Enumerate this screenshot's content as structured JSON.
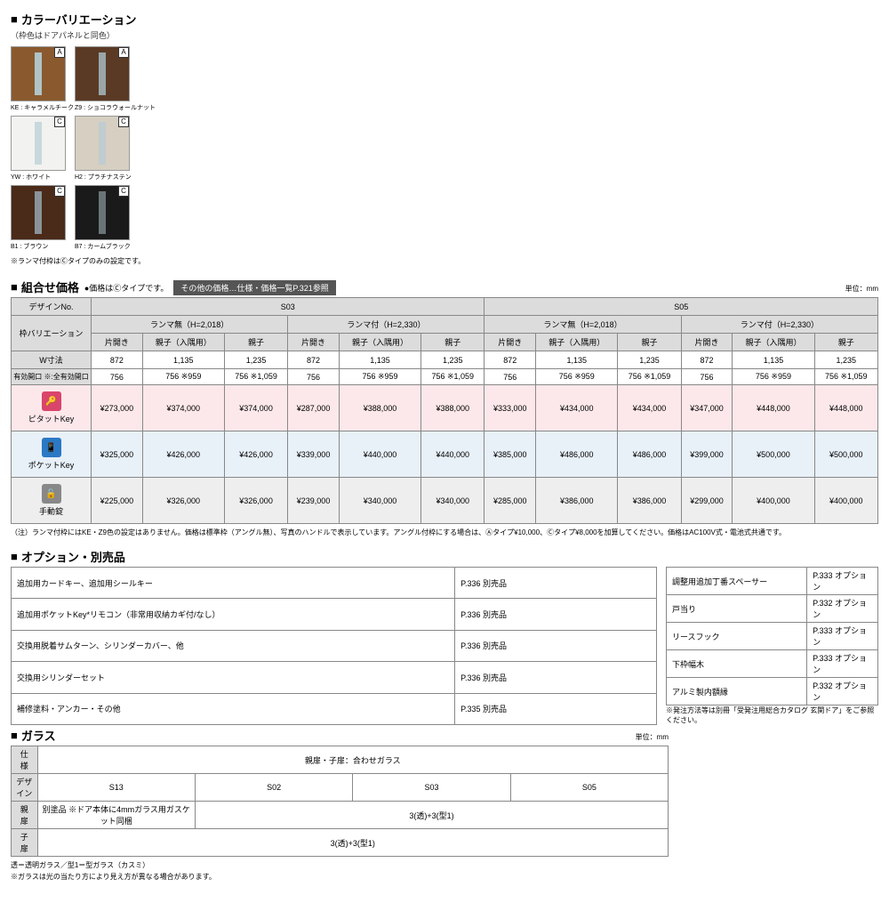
{
  "section1": {
    "title": "カラーバリエーション",
    "subtitle": "（枠色はドアパネルと同色）",
    "colors": [
      [
        {
          "code": "KE",
          "name": "キャラメルチーク",
          "bg": "#8a5a2e",
          "slit": "#b0c4c8",
          "tag": "A"
        },
        {
          "code": "Z9",
          "name": "ショコラウォールナット",
          "bg": "#5a3a24",
          "slit": "#9aa6a8",
          "tag": "A"
        }
      ],
      [
        {
          "code": "YW",
          "name": "ホワイト",
          "bg": "#f2f2f0",
          "slit": "#c8d8dc",
          "tag": "C"
        },
        {
          "code": "H2",
          "name": "プラチナステン",
          "bg": "#d6cfc2",
          "slit": "#c0cccf",
          "tag": "C"
        }
      ],
      [
        {
          "code": "B1",
          "name": "ブラウン",
          "bg": "#4a2a18",
          "slit": "#8a9498",
          "tag": "C"
        },
        {
          "code": "B7",
          "name": "カームブラック",
          "bg": "#1a1a1a",
          "slit": "#6a7478",
          "tag": "C"
        }
      ]
    ],
    "note": "※ランマ付枠はⒸタイプのみの設定です。"
  },
  "section2": {
    "title": "組合せ価格",
    "headnote": "●価格はⒸタイプです。",
    "refbox": "その他の価格…仕様・価格一覧P.321参照",
    "unit": "単位：mm",
    "design_label": "デザインNo.",
    "frame_label": "枠バリエーション",
    "w_label": "W寸法",
    "eff_label": "有効開口 ※:全有効開口",
    "designs": [
      "S03",
      "S05"
    ],
    "ranma": [
      "ランマ無（H=2,018）",
      "ランマ付（H=2,330）"
    ],
    "open_types": [
      "片開き",
      "親子（入隅用）",
      "親子"
    ],
    "w_vals": [
      "872",
      "1,135",
      "1,235",
      "872",
      "1,135",
      "1,235",
      "872",
      "1,135",
      "1,235",
      "872",
      "1,135",
      "1,235"
    ],
    "eff_vals": [
      "756",
      "756 ※959",
      "756 ※1,059",
      "756",
      "756 ※959",
      "756 ※1,059",
      "756",
      "756 ※959",
      "756 ※1,059",
      "756",
      "756 ※959",
      "756 ※1,059"
    ],
    "keys": [
      {
        "name": "ピタットKey",
        "cls": "key-row-pink",
        "icon": "icon-pink",
        "glyph": "🔑",
        "prices": [
          "¥273,000",
          "¥374,000",
          "¥374,000",
          "¥287,000",
          "¥388,000",
          "¥388,000",
          "¥333,000",
          "¥434,000",
          "¥434,000",
          "¥347,000",
          "¥448,000",
          "¥448,000"
        ]
      },
      {
        "name": "ポケットKey",
        "cls": "key-row-blue",
        "icon": "icon-blue",
        "glyph": "📱",
        "prices": [
          "¥325,000",
          "¥426,000",
          "¥426,000",
          "¥339,000",
          "¥440,000",
          "¥440,000",
          "¥385,000",
          "¥486,000",
          "¥486,000",
          "¥399,000",
          "¥500,000",
          "¥500,000"
        ]
      },
      {
        "name": "手動錠",
        "cls": "key-row-gray",
        "icon": "icon-gray",
        "glyph": "🔓",
        "prices": [
          "¥225,000",
          "¥326,000",
          "¥326,000",
          "¥239,000",
          "¥340,000",
          "¥340,000",
          "¥285,000",
          "¥386,000",
          "¥386,000",
          "¥299,000",
          "¥400,000",
          "¥400,000"
        ]
      }
    ],
    "footnote": "（注）ランマ付枠にはKE・Z9色の設定はありません。価格は標準枠（アングル無）、写真のハンドルで表示しています。アングル付枠にする場合は、Ⓐタイプ¥10,000、Ⓒタイプ¥8,000を加算してください。価格はAC100V式・電池式共通です。"
  },
  "section3": {
    "title": "オプション・別売品",
    "left": [
      {
        "n": "追加用カードキー、追加用シールキー",
        "v": "P.336  別売品"
      },
      {
        "n": "追加用ポケットKey*リモコン（非常用収納カギ付/なし）",
        "v": "P.336  別売品"
      },
      {
        "n": "交換用脱着サムターン、シリンダーカバー、他",
        "v": "P.336  別売品"
      },
      {
        "n": "交換用シリンダーセット",
        "v": "P.336  別売品"
      },
      {
        "n": "補修塗料・アンカー・その他",
        "v": "P.335  別売品"
      }
    ],
    "right": [
      {
        "n": "調整用追加丁番スペーサー",
        "v": "P.333  オプション"
      },
      {
        "n": "戸当り",
        "v": "P.332  オプション"
      },
      {
        "n": "リースフック",
        "v": "P.333  オプション"
      },
      {
        "n": "下枠幅木",
        "v": "P.333  オプション"
      },
      {
        "n": "アルミ製内額縁",
        "v": "P.332  オプション"
      }
    ],
    "note": "※発注方法等は別冊「受発注用総合カタログ 玄関ドア」をご参照ください。"
  },
  "section4": {
    "title": "ガラス",
    "unit": "単位：mm",
    "rows": {
      "r1l": "仕　様",
      "r1v": "親扉・子扉：合わせガラス",
      "r2l": "デザイン",
      "r2a": "S13",
      "r2b": "S02",
      "r2c": "S03",
      "r2d": "S05",
      "r3l": "親　扉",
      "r3a": "別塗品 ※ドア本体に4mmガラス用ガスケット同梱",
      "r3b": "3(透)+3(型1)",
      "r4l": "子　扉",
      "r4v": "3(透)+3(型1)"
    },
    "notes": [
      "透＝透明ガラス／型1＝型ガラス（カスミ）",
      "※ガラスは光の当たり方により見え方が異なる場合があります。"
    ]
  }
}
